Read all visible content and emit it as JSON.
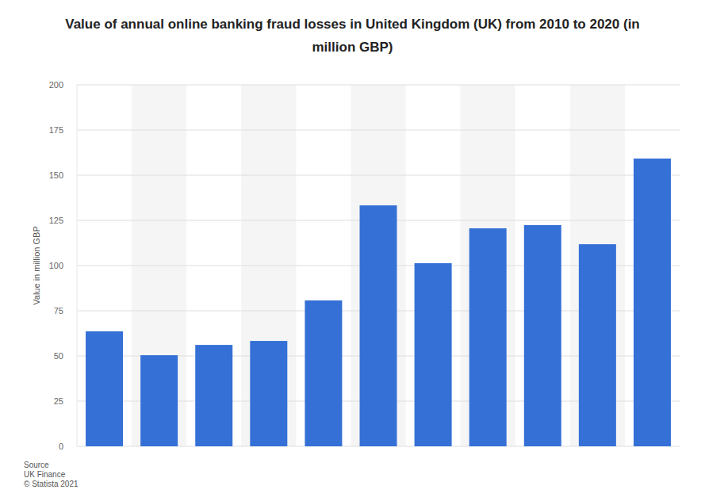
{
  "chart_data": {
    "type": "bar",
    "title": "Value of annual online banking fraud losses in United Kingdom (UK) from 2010 to 2020 (in million GBP)",
    "y_label": "Value in million GBP",
    "source": [
      "Source",
      "UK Finance",
      "© Statista 2021"
    ],
    "categories": [
      null,
      null,
      null,
      null,
      null,
      null,
      null,
      null,
      null,
      null,
      null
    ],
    "values": [
      63.6,
      50.4,
      56.1,
      58.3,
      80.7,
      133.3,
      101.3,
      120.6,
      122.4,
      111.8,
      159.2
    ],
    "color": "#3470d6",
    "ylim": [
      0,
      200
    ],
    "yticks": [
      0,
      25,
      50,
      75,
      100,
      125,
      150,
      175,
      200
    ],
    "grid": true,
    "tick_labels": "y"
  }
}
